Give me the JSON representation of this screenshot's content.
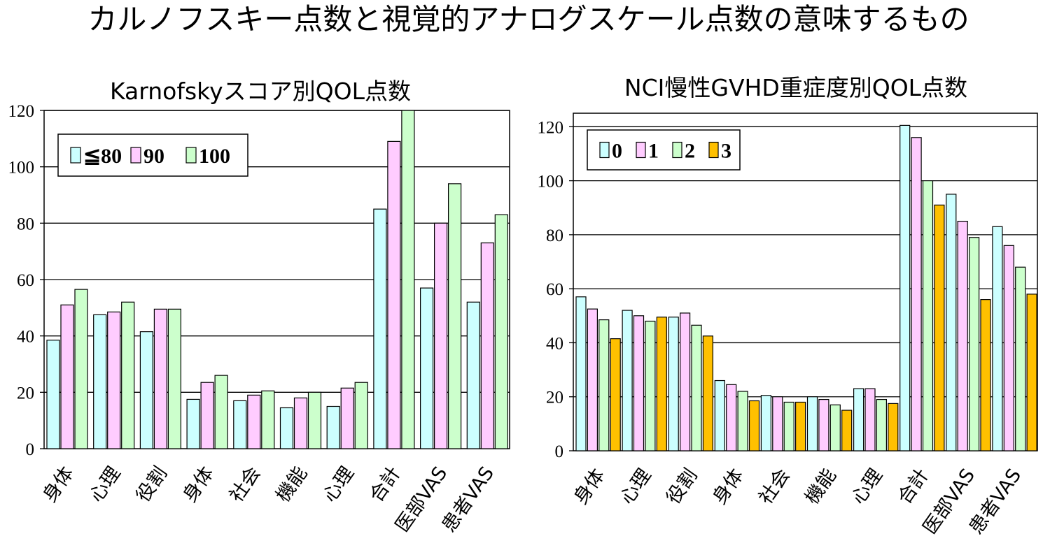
{
  "title": "カルノフスキー点数と視覚的アナログスケール点数の意味するもの",
  "chart_data": [
    {
      "type": "bar",
      "title": "Karnofskyスコア別QOL点数",
      "categories": [
        "身体",
        "心理",
        "役割",
        "身体",
        "社会",
        "機能",
        "心理",
        "合計",
        "医部VAS",
        "患者VAS"
      ],
      "ylim": [
        0,
        120
      ],
      "yticks": [
        0,
        20,
        40,
        60,
        80,
        100,
        120
      ],
      "grid": true,
      "legend_position": "top-left",
      "series": [
        {
          "name": "≦80",
          "color": "#ccffff",
          "values": [
            38.5,
            47.5,
            41.5,
            17.5,
            17,
            14.5,
            15,
            85,
            57,
            52
          ]
        },
        {
          "name": "90",
          "color": "#ffccff",
          "values": [
            51,
            48.5,
            49.5,
            23.5,
            19,
            18,
            21.5,
            109,
            80,
            73
          ]
        },
        {
          "name": "100",
          "color": "#ccffcc",
          "values": [
            56.5,
            52,
            49.5,
            26,
            20.5,
            20,
            23.5,
            120,
            94,
            83
          ]
        }
      ]
    },
    {
      "type": "bar",
      "title": "NCI慢性GVHD重症度別QOL点数",
      "categories": [
        "身体",
        "心理",
        "役割",
        "身体",
        "社会",
        "機能",
        "心理",
        "合計",
        "医部VAS",
        "患者VAS"
      ],
      "ylim": [
        0,
        125
      ],
      "yticks": [
        0,
        20,
        40,
        60,
        80,
        100,
        120
      ],
      "grid": true,
      "legend_position": "top-left",
      "series": [
        {
          "name": "0",
          "color": "#ccffff",
          "values": [
            57,
            52,
            49.5,
            26,
            20.5,
            20,
            23,
            120.5,
            95,
            83
          ]
        },
        {
          "name": "1",
          "color": "#ffccff",
          "values": [
            52.5,
            50,
            51,
            24.5,
            20,
            19,
            23,
            116,
            85,
            76
          ]
        },
        {
          "name": "2",
          "color": "#ccffcc",
          "values": [
            48.5,
            48,
            46.5,
            22,
            18,
            17,
            19,
            100,
            79,
            68
          ]
        },
        {
          "name": "3",
          "color": "#ffc000",
          "values": [
            41.5,
            49.5,
            42.5,
            18.5,
            18,
            15,
            17.5,
            91,
            56,
            58
          ]
        }
      ]
    }
  ]
}
